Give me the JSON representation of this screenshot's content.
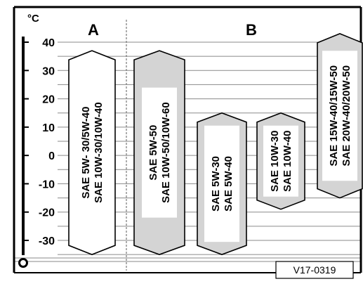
{
  "diagram": {
    "unit": "°C",
    "y_ticks": [
      "40",
      "30",
      "20",
      "10",
      "0",
      "-10",
      "-20",
      "-30"
    ],
    "sections": [
      {
        "id": "A",
        "label": "A"
      },
      {
        "id": "B",
        "label": "B"
      }
    ],
    "reference_code": "V17-0319"
  },
  "chart_data": {
    "type": "bar",
    "ylabel": "°C",
    "ylim": [
      -40,
      45
    ],
    "y_ticks": [
      40,
      30,
      20,
      10,
      0,
      -10,
      -20,
      -30
    ],
    "categories": [
      "SAE 5W- 30/5W-40 | SAE 10W-30/10W-40",
      "SAE 5W-50 | SAE 10W-50/10W-60",
      "SAE 5W-30 | SAE 5W-40",
      "SAE 10W-30 | SAE 10W-40",
      "SAE 15W-40/15W-50 | SAE 20W-40/20W-50"
    ],
    "bars": [
      {
        "section": "A",
        "lines": [
          "SAE 5W- 30/5W-40",
          "SAE 10W-30/10W-40"
        ],
        "min": -35,
        "max": 37,
        "fill": "#ffffff"
      },
      {
        "section": "B",
        "lines": [
          "SAE 5W-50",
          "SAE 10W-50/10W-60"
        ],
        "min": -35,
        "max": 37,
        "fill": "#d4d4d4"
      },
      {
        "section": "B",
        "lines": [
          "SAE 5W-30",
          "SAE 5W-40"
        ],
        "min": -35,
        "max": 15,
        "fill": "#d4d4d4"
      },
      {
        "section": "B",
        "lines": [
          "SAE 10W-30",
          "SAE 10W-40"
        ],
        "min": -19,
        "max": 15,
        "fill": "#d4d4d4"
      },
      {
        "section": "B",
        "lines": [
          "SAE 15W-40/15W-50",
          "SAE 20W-40/20W-50"
        ],
        "min": -15,
        "max": 43,
        "fill": "#d4d4d4"
      }
    ]
  }
}
